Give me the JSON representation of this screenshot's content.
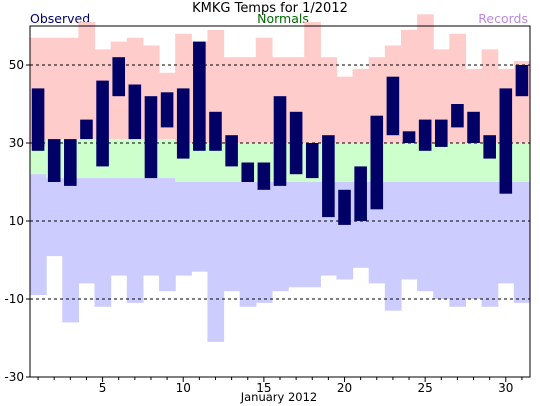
{
  "chart_data": {
    "type": "bar",
    "title": "KMKG Temps for 1/2012",
    "xlabel": "January 2012",
    "ylabel": "",
    "ylim": [
      -30,
      60
    ],
    "xlim": [
      0.5,
      31.5
    ],
    "yticks": [
      -30,
      -10,
      10,
      30,
      50
    ],
    "xticks": [
      5,
      10,
      15,
      20,
      25,
      30
    ],
    "gridlines_y": [
      -10,
      10,
      30,
      50
    ],
    "grid": "dashed horizontal",
    "legend": [
      {
        "name": "Observed",
        "position": "top-left",
        "color": "#000066"
      },
      {
        "name": "Normals",
        "position": "top-center",
        "color": "#006600"
      },
      {
        "name": "Records",
        "position": "top-right",
        "color": "#bb88dd"
      }
    ],
    "days": [
      1,
      2,
      3,
      4,
      5,
      6,
      7,
      8,
      9,
      10,
      11,
      12,
      13,
      14,
      15,
      16,
      17,
      18,
      19,
      20,
      21,
      22,
      23,
      24,
      25,
      26,
      27,
      28,
      29,
      30,
      31
    ],
    "record_high": [
      57,
      57,
      57,
      61,
      54,
      56,
      57,
      55,
      48,
      58,
      56,
      59,
      52,
      52,
      57,
      52,
      52,
      61,
      52,
      47,
      49,
      52,
      55,
      59,
      63,
      54,
      58,
      49,
      54,
      49,
      51
    ],
    "record_low": [
      -9,
      1,
      -16,
      -6,
      -12,
      -4,
      -11,
      -4,
      -8,
      -4,
      -3,
      -21,
      -8,
      -12,
      -11,
      -8,
      -7,
      -7,
      -4,
      -5,
      -2,
      -6,
      -13,
      -5,
      -8,
      -10,
      -12,
      -10,
      -12,
      -6,
      -11
    ],
    "normal_high": [
      29,
      31,
      31,
      31,
      31,
      31,
      31,
      31,
      31,
      30,
      30,
      30,
      30,
      30,
      30,
      30,
      30,
      30,
      30,
      30,
      30,
      30,
      30,
      30,
      30,
      30,
      30,
      30,
      30,
      30,
      30
    ],
    "normal_low": [
      22,
      21,
      21,
      21,
      21,
      21,
      21,
      21,
      21,
      20,
      20,
      20,
      20,
      20,
      20,
      20,
      20,
      20,
      20,
      20,
      20,
      20,
      20,
      20,
      20,
      20,
      20,
      20,
      20,
      20,
      20
    ],
    "observed_high": [
      44,
      31,
      31,
      36,
      46,
      52,
      45,
      42,
      43,
      44,
      56,
      38,
      32,
      25,
      25,
      42,
      38,
      30,
      32,
      18,
      24,
      37,
      47,
      33,
      36,
      36,
      40,
      38,
      32,
      44,
      50
    ],
    "observed_low": [
      28,
      20,
      19,
      31,
      24,
      42,
      31,
      21,
      34,
      26,
      28,
      28,
      24,
      20,
      18,
      19,
      22,
      21,
      11,
      9,
      10,
      13,
      32,
      30,
      28,
      29,
      34,
      30,
      26,
      17,
      42
    ],
    "colors": {
      "record_band": "#ffcccc",
      "normal_band": "#ccffcc",
      "below_normal_band": "#ccccff",
      "observed_bar": "#000066",
      "gridline": "#000000"
    }
  }
}
